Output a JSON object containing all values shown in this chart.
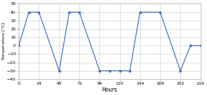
{
  "x": [
    0,
    12,
    24,
    48,
    60,
    72,
    96,
    108,
    120,
    132,
    144,
    168,
    192,
    204,
    216
  ],
  "y": [
    0,
    40,
    40,
    -30,
    40,
    40,
    -30,
    -30,
    -30,
    -30,
    40,
    40,
    -30,
    0,
    0
  ],
  "xticks": [
    0,
    24,
    48,
    72,
    96,
    120,
    144,
    168,
    192,
    216
  ],
  "yticks": [
    -40,
    -30,
    -20,
    -10,
    0,
    10,
    20,
    30,
    40,
    50
  ],
  "xlim": [
    0,
    216
  ],
  "ylim": [
    -40,
    50
  ],
  "xlabel": "Hours",
  "ylabel": "Temperature [°C]",
  "line_color": "#4472C4",
  "line_width": 0.9,
  "grid_color": "#D0D0D0",
  "background_color": "#FFFFFF"
}
